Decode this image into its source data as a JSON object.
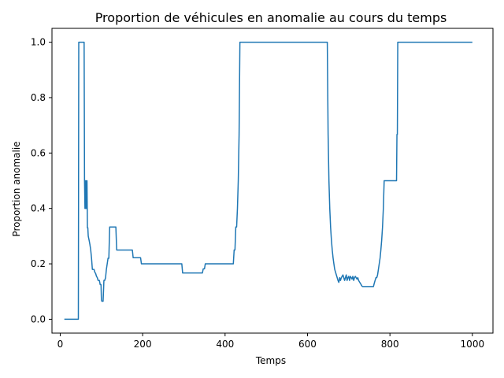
{
  "chart_data": {
    "type": "line",
    "title": "Proportion de véhicules en anomalie au cours du temps",
    "xlabel": "Temps",
    "ylabel": "Proportion anomalie",
    "xlim": [
      -20,
      1050
    ],
    "ylim": [
      -0.05,
      1.05
    ],
    "xticks": [
      0,
      200,
      400,
      600,
      800,
      1000
    ],
    "xtick_labels": [
      "0",
      "200",
      "400",
      "600",
      "800",
      "1000"
    ],
    "yticks": [
      0.0,
      0.2,
      0.4,
      0.6,
      0.8,
      1.0
    ],
    "ytick_labels": [
      "0.0",
      "0.2",
      "0.4",
      "0.6",
      "0.8",
      "1.0"
    ],
    "grid": false,
    "line_color": "#1f77b4",
    "series": [
      {
        "x": [
          10,
          44,
          45,
          58,
          59,
          60,
          61,
          62,
          63,
          64,
          65,
          66,
          67,
          68,
          70,
          72,
          74,
          76,
          78,
          80,
          82,
          84,
          86,
          88,
          90,
          92,
          95,
          97,
          99,
          100,
          101,
          102,
          103,
          104,
          105,
          106,
          108,
          110,
          112,
          114,
          116,
          118,
          120,
          122,
          135,
          137,
          175,
          177,
          195,
          197,
          295,
          297,
          345,
          347,
          350,
          352,
          420,
          422,
          424,
          426,
          428,
          430,
          432,
          434,
          436,
          438,
          648,
          650,
          652,
          654,
          656,
          658,
          660,
          662,
          664,
          666,
          668,
          670,
          672,
          674,
          676,
          678,
          680,
          682,
          684,
          686,
          688,
          690,
          692,
          694,
          696,
          698,
          700,
          702,
          704,
          706,
          708,
          710,
          712,
          714,
          716,
          718,
          720,
          722,
          724,
          726,
          728,
          730,
          732,
          734,
          736,
          740,
          745,
          750,
          755,
          760,
          762,
          764,
          766,
          768,
          770,
          772,
          774,
          776,
          778,
          780,
          782,
          784,
          786,
          788,
          790,
          792,
          794,
          796,
          798,
          815,
          816,
          817,
          818,
          819,
          820,
          1000
        ],
        "y": [
          0.0,
          0.0,
          1.0,
          1.0,
          0.5,
          0.4,
          0.5,
          0.4,
          0.5,
          0.4,
          0.5,
          0.33,
          0.33,
          0.3,
          0.286,
          0.27,
          0.25,
          0.22,
          0.18,
          0.18,
          0.18,
          0.17,
          0.165,
          0.155,
          0.15,
          0.14,
          0.14,
          0.125,
          0.125,
          0.07,
          0.065,
          0.065,
          0.065,
          0.065,
          0.1,
          0.14,
          0.14,
          0.15,
          0.18,
          0.2,
          0.22,
          0.22,
          0.333,
          0.333,
          0.333,
          0.25,
          0.25,
          0.222,
          0.222,
          0.2,
          0.2,
          0.167,
          0.167,
          0.182,
          0.182,
          0.2,
          0.2,
          0.25,
          0.25,
          0.333,
          0.333,
          0.4,
          0.5,
          0.667,
          1.0,
          1.0,
          1.0,
          0.667,
          0.5,
          0.4,
          0.333,
          0.286,
          0.25,
          0.222,
          0.2,
          0.18,
          0.17,
          0.16,
          0.15,
          0.14,
          0.133,
          0.15,
          0.14,
          0.15,
          0.155,
          0.16,
          0.15,
          0.14,
          0.15,
          0.16,
          0.14,
          0.15,
          0.155,
          0.14,
          0.155,
          0.15,
          0.145,
          0.155,
          0.14,
          0.15,
          0.155,
          0.15,
          0.145,
          0.15,
          0.14,
          0.135,
          0.13,
          0.125,
          0.12,
          0.118,
          0.118,
          0.118,
          0.118,
          0.118,
          0.118,
          0.118,
          0.13,
          0.14,
          0.15,
          0.15,
          0.16,
          0.18,
          0.2,
          0.22,
          0.25,
          0.286,
          0.333,
          0.4,
          0.5,
          0.5,
          0.5,
          0.5,
          0.5,
          0.5,
          0.5,
          0.5,
          0.5,
          0.667,
          0.667,
          1.0,
          1.0,
          1.0
        ]
      }
    ]
  }
}
